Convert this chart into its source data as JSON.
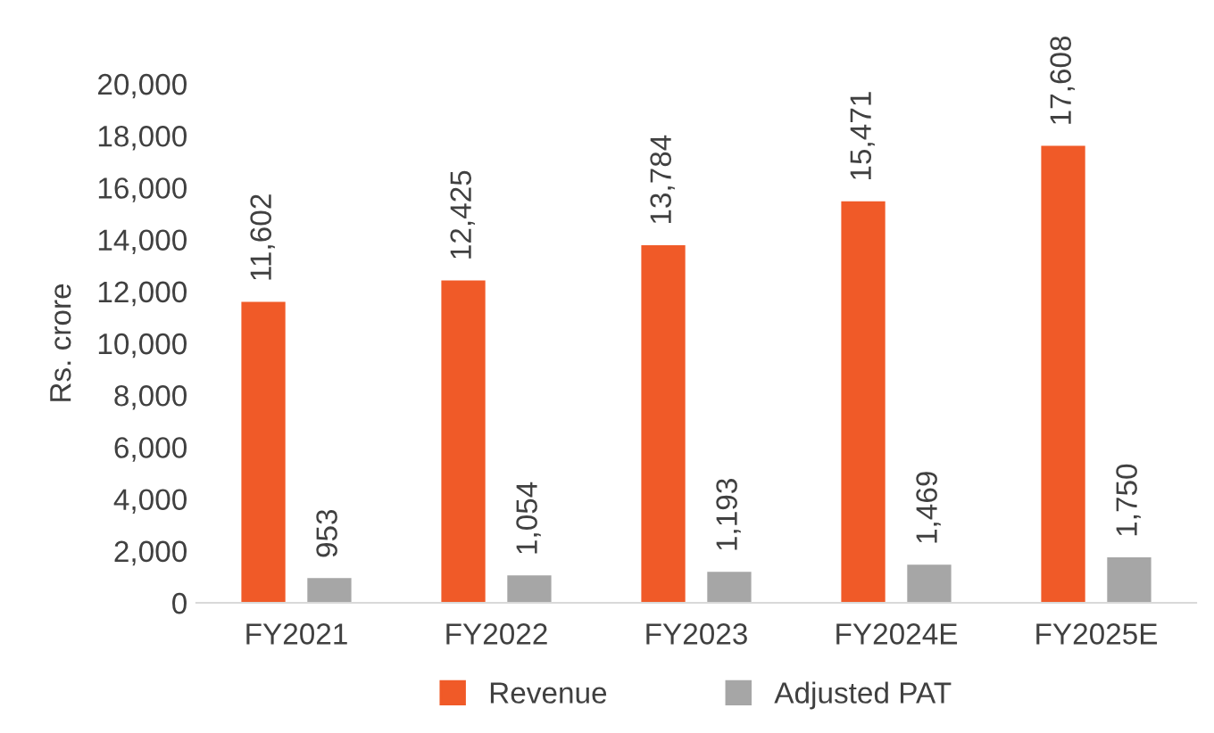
{
  "chart_data": {
    "type": "bar",
    "ylabel": "Rs. crore",
    "categories": [
      "FY2021",
      "FY2022",
      "FY2023",
      "FY2024E",
      "FY2025E"
    ],
    "series": [
      {
        "name": "Revenue",
        "color": "#f05a28",
        "values": [
          11602,
          12425,
          13784,
          15471,
          17608
        ],
        "value_labels": [
          "11,602",
          "12,425",
          "13,784",
          "15,471",
          "17,608"
        ]
      },
      {
        "name": "Adjusted PAT",
        "color": "#a6a6a6",
        "values": [
          953,
          1054,
          1193,
          1469,
          1750
        ],
        "value_labels": [
          "953",
          "1,054",
          "1,193",
          "1,469",
          "1,750"
        ]
      }
    ],
    "ylim": [
      0,
      20000
    ],
    "yticks": [
      0,
      {
        "value": 2000,
        "label": "2,000"
      },
      {
        "value": 4000,
        "label": "4,000"
      },
      {
        "value": 6000,
        "label": "6,000"
      },
      {
        "value": 8000,
        "label": "8,000"
      },
      {
        "value": 10000,
        "label": "10,000"
      },
      {
        "value": 12000,
        "label": "12,000"
      },
      {
        "value": 14000,
        "label": "14,000"
      },
      {
        "value": 16000,
        "label": "16,000"
      },
      {
        "value": 18000,
        "label": "18,000"
      },
      {
        "value": 20000,
        "label": "20,000"
      }
    ],
    "grid": false,
    "legend": "bottom"
  }
}
